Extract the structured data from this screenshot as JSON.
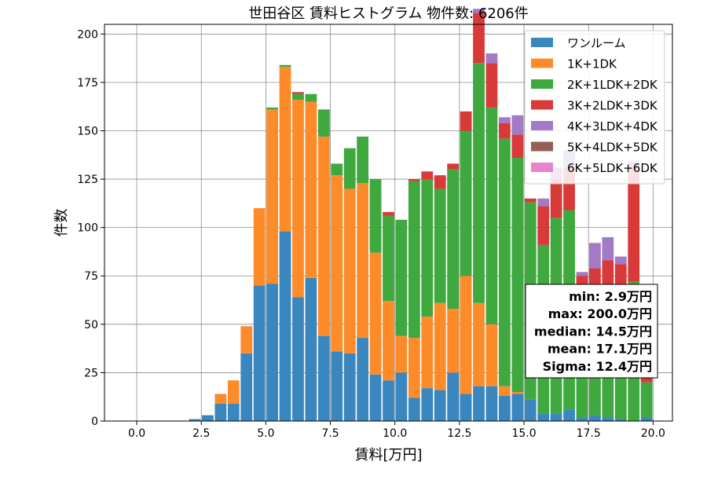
{
  "chart_data": {
    "type": "bar",
    "title": "世田谷区 賃料ヒストグラム 物件数: 6206件",
    "xlabel": "賃料[万円]",
    "ylabel": "件数",
    "xlim": [
      -1.25,
      20.75
    ],
    "ylim": [
      0,
      205
    ],
    "xticks": [
      0.0,
      2.5,
      5.0,
      7.5,
      10.0,
      12.5,
      15.0,
      17.5,
      20.0
    ],
    "xtick_labels": [
      "0.0",
      "2.5",
      "5.0",
      "7.5",
      "10.0",
      "12.5",
      "15.0",
      "17.5",
      "20.0"
    ],
    "yticks": [
      0,
      25,
      50,
      75,
      100,
      125,
      150,
      175,
      200
    ],
    "ytick_labels": [
      "0",
      "25",
      "50",
      "75",
      "100",
      "125",
      "150",
      "175",
      "200"
    ],
    "bin_width": 0.5,
    "grid": true,
    "legend_position": "top-right",
    "x": [
      2.25,
      2.75,
      3.25,
      3.75,
      4.25,
      4.75,
      5.25,
      5.75,
      6.25,
      6.75,
      7.25,
      7.75,
      8.25,
      8.75,
      9.25,
      9.75,
      10.25,
      10.75,
      11.25,
      11.75,
      12.25,
      12.75,
      13.25,
      13.75,
      14.25,
      14.75,
      15.25,
      15.75,
      16.25,
      16.75,
      17.25,
      17.75,
      18.25,
      18.75,
      19.25,
      19.75
    ],
    "series": [
      {
        "name": "ワンルーム",
        "color": "#3a87c0",
        "values": [
          1,
          3,
          9,
          9,
          35,
          70,
          71,
          98,
          64,
          74,
          44,
          36,
          35,
          43,
          24,
          21,
          25,
          12,
          17,
          16,
          25,
          14,
          18,
          18,
          13,
          14,
          11,
          4,
          4,
          6,
          2,
          3,
          2,
          1,
          0,
          2
        ]
      },
      {
        "name": "1K+1DK",
        "color": "#fe8b2a",
        "values": [
          0,
          0,
          5,
          12,
          14,
          40,
          90,
          85,
          102,
          91,
          103,
          91,
          85,
          80,
          63,
          41,
          19,
          31,
          37,
          45,
          33,
          61,
          43,
          32,
          5,
          1,
          0,
          0,
          0,
          0,
          0,
          0,
          0,
          0,
          0,
          0
        ]
      },
      {
        "name": "2K+1LDK+2DK",
        "color": "#3fa83f",
        "values": [
          0,
          0,
          0,
          0,
          0,
          0,
          1,
          1,
          3,
          4,
          14,
          6,
          21,
          24,
          38,
          44,
          60,
          81,
          71,
          59,
          72,
          75,
          124,
          112,
          128,
          121,
          102,
          87,
          101,
          103,
          61,
          50,
          63,
          58,
          72,
          18
        ]
      },
      {
        "name": "3K+2LDK+3DK",
        "color": "#d83a3a",
        "values": [
          0,
          0,
          0,
          0,
          0,
          0,
          0,
          0,
          1,
          0,
          0,
          0,
          0,
          0,
          0,
          2,
          0,
          1,
          4,
          7,
          3,
          10,
          26,
          23,
          8,
          12,
          2,
          20,
          20,
          22,
          12,
          26,
          18,
          22,
          60,
          10
        ]
      },
      {
        "name": "4K+3LDK+4DK",
        "color": "#a27ac6",
        "values": [
          0,
          0,
          0,
          0,
          0,
          0,
          0,
          0,
          0,
          0,
          0,
          0,
          0,
          0,
          0,
          0,
          0,
          0,
          0,
          0,
          0,
          0,
          2,
          5,
          3,
          10,
          0,
          4,
          6,
          9,
          2,
          13,
          12,
          4,
          2,
          7
        ]
      },
      {
        "name": "5K+4LDK+5DK",
        "color": "#946055",
        "values": [
          0,
          0,
          0,
          0,
          0,
          0,
          0,
          0,
          0,
          0,
          0,
          0,
          0,
          0,
          0,
          0,
          0,
          0,
          0,
          0,
          0,
          0,
          0,
          0,
          0,
          0,
          0,
          0,
          0,
          0,
          0,
          0,
          0,
          0,
          0,
          0
        ]
      },
      {
        "name": "6K+5LDK+6DK",
        "color": "#e685cb",
        "values": [
          0,
          0,
          0,
          0,
          0,
          0,
          0,
          0,
          0,
          0,
          0,
          0,
          0,
          0,
          0,
          0,
          0,
          0,
          0,
          0,
          0,
          0,
          0,
          0,
          0,
          0,
          0,
          0,
          0,
          0,
          0,
          0,
          0,
          0,
          0,
          0
        ]
      }
    ],
    "stats": [
      "min: 2.9万円",
      "max: 200.0万円",
      "median: 14.5万円",
      "mean: 17.1万円",
      "Sigma: 12.4万円"
    ]
  }
}
